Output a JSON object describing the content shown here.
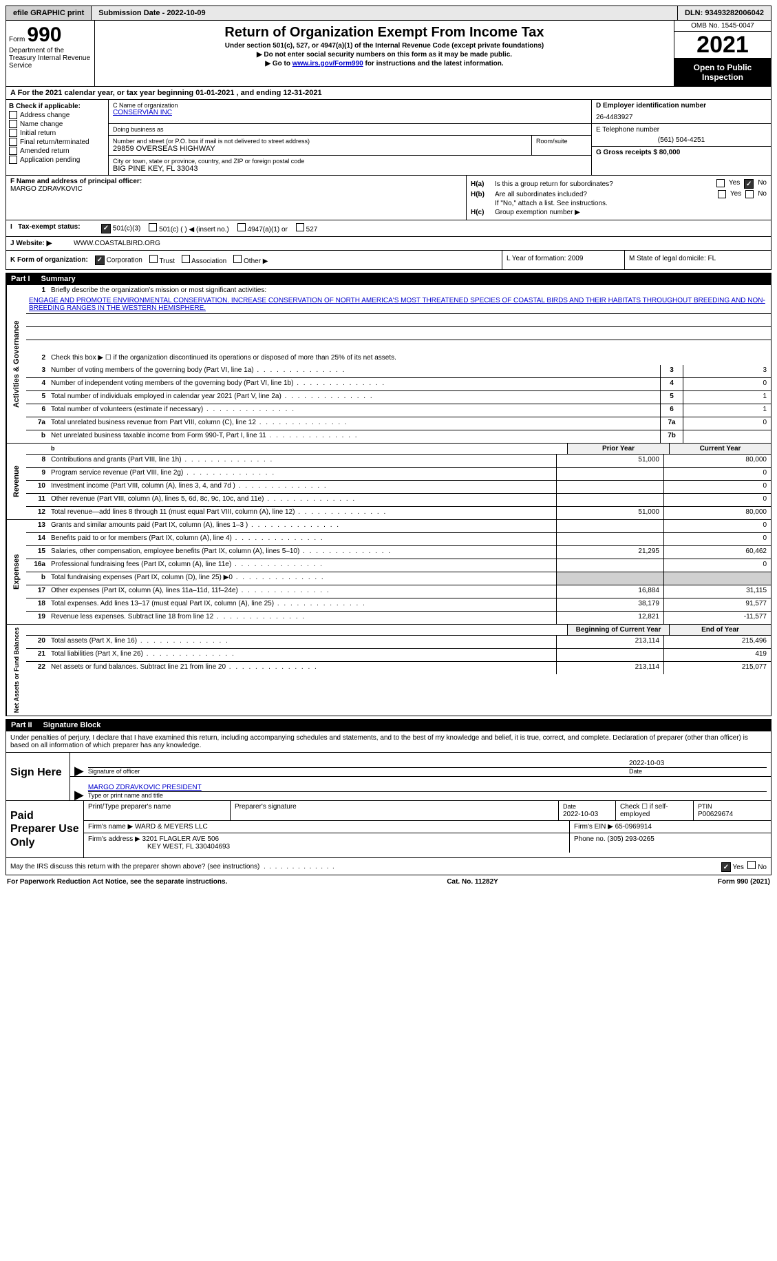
{
  "topbar": {
    "efile": "efile GRAPHIC print",
    "submission_label": "Submission Date - 2022-10-09",
    "dln_label": "DLN: 93493282006042"
  },
  "header": {
    "form_label": "Form",
    "form_number": "990",
    "title": "Return of Organization Exempt From Income Tax",
    "sub1": "Under section 501(c), 527, or 4947(a)(1) of the Internal Revenue Code (except private foundations)",
    "sub2": "▶ Do not enter social security numbers on this form as it may be made public.",
    "sub3_pre": "▶ Go to ",
    "sub3_link": "www.irs.gov/Form990",
    "sub3_post": " for instructions and the latest information.",
    "dept": "Department of the Treasury Internal Revenue Service",
    "omb": "OMB No. 1545-0047",
    "year": "2021",
    "open_public": "Open to Public Inspection"
  },
  "line_a": "A For the 2021 calendar year, or tax year beginning 01-01-2021    , and ending 12-31-2021",
  "section_b": {
    "label": "B Check if applicable:",
    "items": [
      "Address change",
      "Name change",
      "Initial return",
      "Final return/terminated",
      "Amended return",
      "Application pending"
    ]
  },
  "section_c": {
    "name_label": "C Name of organization",
    "org_name": "CONSERVIAN INC",
    "dba_label": "Doing business as",
    "addr_label": "Number and street (or P.O. box if mail is not delivered to street address)",
    "addr": "29859 OVERSEAS HIGHWAY",
    "room_label": "Room/suite",
    "city_label": "City or town, state or province, country, and ZIP or foreign postal code",
    "city": "BIG PINE KEY, FL  33043"
  },
  "section_d": {
    "ein_label": "D Employer identification number",
    "ein": "26-4483927",
    "phone_label": "E Telephone number",
    "phone": "(561) 504-4251",
    "gross_label": "G Gross receipts $ 80,000"
  },
  "section_f": {
    "label": "F Name and address of principal officer:",
    "officer": "MARGO ZDRAVKOVIC"
  },
  "section_h": {
    "ha_label": "H(a)",
    "ha_text": "Is this a group return for subordinates?",
    "hb_label": "H(b)",
    "hb_text": "Are all subordinates included?",
    "hb_note": "If \"No,\" attach a list. See instructions.",
    "hc_label": "H(c)",
    "hc_text": "Group exemption number ▶",
    "yes": "Yes",
    "no": "No"
  },
  "section_i": {
    "label": "Tax-exempt status:",
    "opts": [
      "501(c)(3)",
      "501(c) (  ) ◀ (insert no.)",
      "4947(a)(1) or",
      "527"
    ]
  },
  "section_j": {
    "label": "J   Website: ▶",
    "value": "WWW.COASTALBIRD.ORG"
  },
  "section_k": {
    "label": "K Form of organization:",
    "opts": [
      "Corporation",
      "Trust",
      "Association",
      "Other ▶"
    ],
    "l_label": "L Year of formation: 2009",
    "m_label": "M State of legal domicile: FL"
  },
  "part1": {
    "header": "Part I",
    "title": "Summary",
    "q1_label": "Briefly describe the organization's mission or most significant activities:",
    "q1_text": "ENGAGE AND PROMOTE ENVIRONMENTAL CONSERVATION. INCREASE CONSERVATION OF NORTH AMERICA'S MOST THREATENED SPECIES OF COASTAL BIRDS AND THEIR HABITATS THROUGHOUT BREEDING AND NON-BREEDING RANGES IN THE WESTERN HEMISPHERE.",
    "q2": "Check this box ▶ ☐ if the organization discontinued its operations or disposed of more than 25% of its net assets.",
    "rows": [
      {
        "n": "3",
        "t": "Number of voting members of the governing body (Part VI, line 1a)",
        "box": "3",
        "v": "3"
      },
      {
        "n": "4",
        "t": "Number of independent voting members of the governing body (Part VI, line 1b)",
        "box": "4",
        "v": "0"
      },
      {
        "n": "5",
        "t": "Total number of individuals employed in calendar year 2021 (Part V, line 2a)",
        "box": "5",
        "v": "1"
      },
      {
        "n": "6",
        "t": "Total number of volunteers (estimate if necessary)",
        "box": "6",
        "v": "1"
      },
      {
        "n": "7a",
        "t": "Total unrelated business revenue from Part VIII, column (C), line 12",
        "box": "7a",
        "v": "0"
      },
      {
        "n": "b",
        "t": "Net unrelated business taxable income from Form 990-T, Part I, line 11",
        "box": "7b",
        "v": ""
      }
    ],
    "prior_year": "Prior Year",
    "current_year": "Current Year",
    "revenue_rows": [
      {
        "n": "8",
        "t": "Contributions and grants (Part VIII, line 1h)",
        "py": "51,000",
        "cy": "80,000"
      },
      {
        "n": "9",
        "t": "Program service revenue (Part VIII, line 2g)",
        "py": "",
        "cy": "0"
      },
      {
        "n": "10",
        "t": "Investment income (Part VIII, column (A), lines 3, 4, and 7d )",
        "py": "",
        "cy": "0"
      },
      {
        "n": "11",
        "t": "Other revenue (Part VIII, column (A), lines 5, 6d, 8c, 9c, 10c, and 11e)",
        "py": "",
        "cy": "0"
      },
      {
        "n": "12",
        "t": "Total revenue—add lines 8 through 11 (must equal Part VIII, column (A), line 12)",
        "py": "51,000",
        "cy": "80,000"
      }
    ],
    "expense_rows": [
      {
        "n": "13",
        "t": "Grants and similar amounts paid (Part IX, column (A), lines 1–3 )",
        "py": "",
        "cy": "0"
      },
      {
        "n": "14",
        "t": "Benefits paid to or for members (Part IX, column (A), line 4)",
        "py": "",
        "cy": "0"
      },
      {
        "n": "15",
        "t": "Salaries, other compensation, employee benefits (Part IX, column (A), lines 5–10)",
        "py": "21,295",
        "cy": "60,462"
      },
      {
        "n": "16a",
        "t": "Professional fundraising fees (Part IX, column (A), line 11e)",
        "py": "",
        "cy": "0"
      },
      {
        "n": "b",
        "t": "Total fundraising expenses (Part IX, column (D), line 25) ▶0",
        "py": "shade",
        "cy": "shade"
      },
      {
        "n": "17",
        "t": "Other expenses (Part IX, column (A), lines 11a–11d, 11f–24e)",
        "py": "16,884",
        "cy": "31,115"
      },
      {
        "n": "18",
        "t": "Total expenses. Add lines 13–17 (must equal Part IX, column (A), line 25)",
        "py": "38,179",
        "cy": "91,577"
      },
      {
        "n": "19",
        "t": "Revenue less expenses. Subtract line 18 from line 12",
        "py": "12,821",
        "cy": "-11,577"
      }
    ],
    "begin_year": "Beginning of Current Year",
    "end_year": "End of Year",
    "net_rows": [
      {
        "n": "20",
        "t": "Total assets (Part X, line 16)",
        "py": "213,114",
        "cy": "215,496"
      },
      {
        "n": "21",
        "t": "Total liabilities (Part X, line 26)",
        "py": "",
        "cy": "419"
      },
      {
        "n": "22",
        "t": "Net assets or fund balances. Subtract line 21 from line 20",
        "py": "213,114",
        "cy": "215,077"
      }
    ],
    "tabs": {
      "ag": "Activities & Governance",
      "rev": "Revenue",
      "exp": "Expenses",
      "net": "Net Assets or Fund Balances"
    }
  },
  "part2": {
    "header": "Part II",
    "title": "Signature Block",
    "intro": "Under penalties of perjury, I declare that I have examined this return, including accompanying schedules and statements, and to the best of my knowledge and belief, it is true, correct, and complete. Declaration of preparer (other than officer) is based on all information of which preparer has any knowledge.",
    "sign_here": "Sign Here",
    "sig_off": "Signature of officer",
    "sig_date": "Date",
    "sig_date_val": "2022-10-03",
    "name_title": "MARGO ZDRAVKOVIC  PRESIDENT",
    "name_title_label": "Type or print name and title",
    "paid_prep": "Paid Preparer Use Only",
    "prep_name_label": "Print/Type preparer's name",
    "prep_sig_label": "Preparer's signature",
    "prep_date_label": "Date",
    "prep_date": "2022-10-03",
    "check_if": "Check ☐ if self-employed",
    "ptin_label": "PTIN",
    "ptin": "P00629674",
    "firm_name_label": "Firm's name     ▶",
    "firm_name": "WARD & MEYERS LLC",
    "firm_ein_label": "Firm's EIN ▶ 65-0969914",
    "firm_addr_label": "Firm's address ▶",
    "firm_addr1": "3201 FLAGLER AVE 506",
    "firm_addr2": "KEY WEST, FL  330404693",
    "firm_phone": "Phone no. (305) 293-0265",
    "may_irs": "May the IRS discuss this return with the preparer shown above? (see instructions)",
    "footer_left": "For Paperwork Reduction Act Notice, see the separate instructions.",
    "footer_mid": "Cat. No. 11282Y",
    "footer_right": "Form 990 (2021)"
  }
}
